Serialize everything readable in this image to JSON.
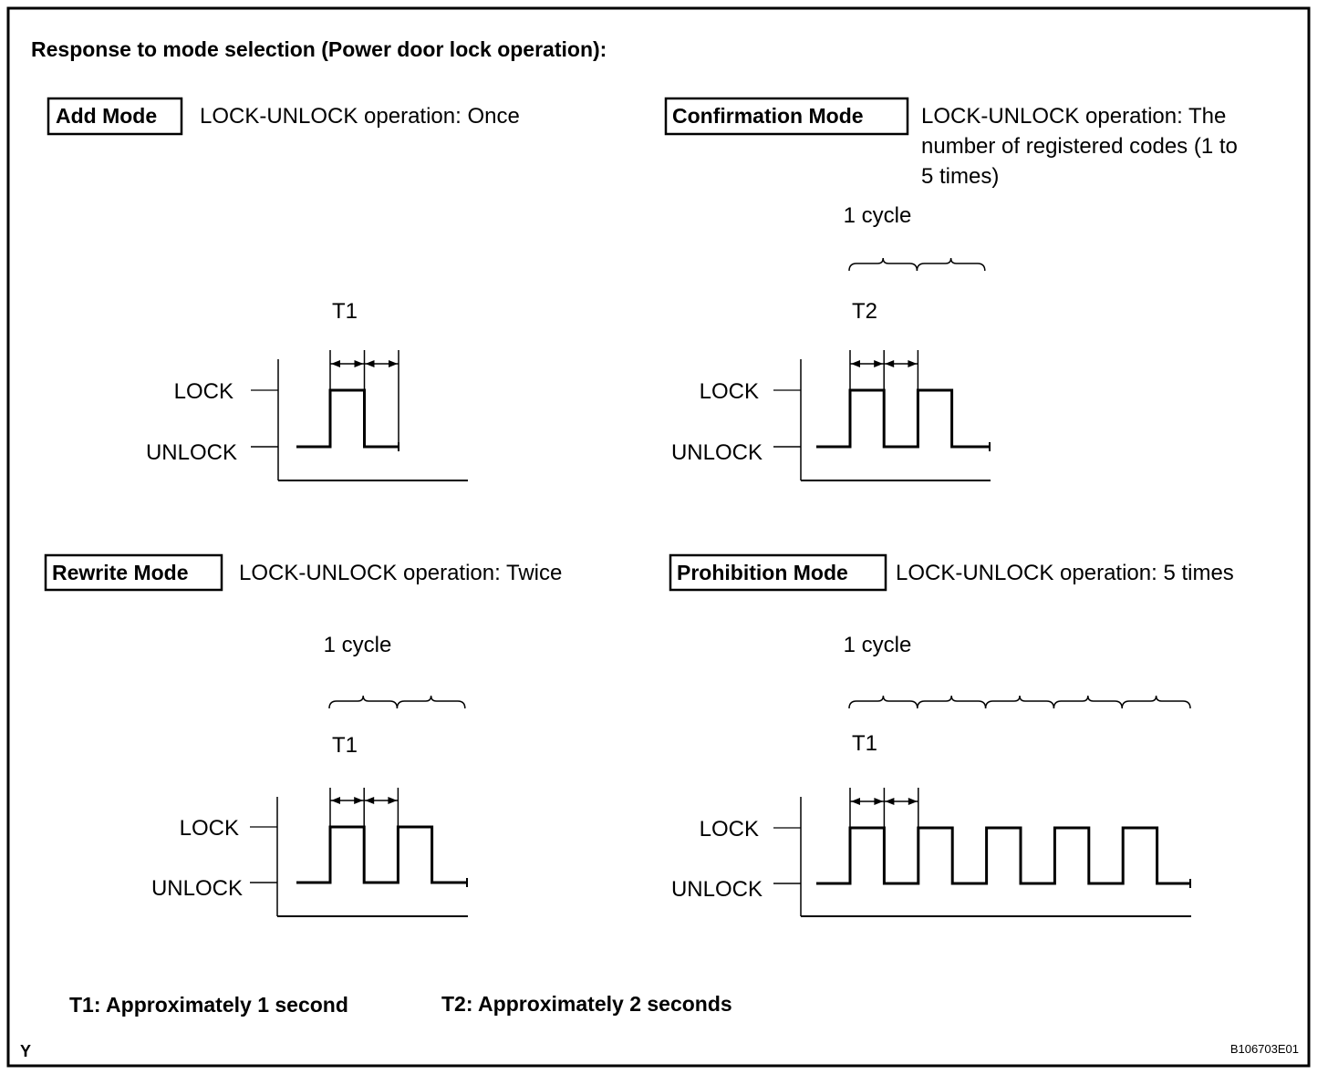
{
  "title": "Response to mode selection (Power door lock operation):",
  "level_labels": {
    "lock": "LOCK",
    "unlock": "UNLOCK"
  },
  "panels": [
    {
      "mode": "Add Mode",
      "description": [
        "LOCK-UNLOCK operation: Once"
      ],
      "timing_label": "T1",
      "cycle_label": "",
      "pulses": 1,
      "cycles": 0
    },
    {
      "mode": "Confirmation Mode",
      "description": [
        "LOCK-UNLOCK operation: The",
        "number of registered codes (1 to",
        "5 times)"
      ],
      "timing_label": "T2",
      "cycle_label": "1 cycle",
      "pulses": 2,
      "cycles": 2
    },
    {
      "mode": "Rewrite Mode",
      "description": [
        "LOCK-UNLOCK operation: Twice"
      ],
      "timing_label": "T1",
      "cycle_label": "1 cycle",
      "pulses": 2,
      "cycles": 2
    },
    {
      "mode": "Prohibition Mode",
      "description": [
        "LOCK-UNLOCK operation: 5 times"
      ],
      "timing_label": "T1",
      "cycle_label": "1 cycle",
      "pulses": 5,
      "cycles": 5
    }
  ],
  "legend": {
    "t1": "T1: Approximately 1 second",
    "t2": "T2: Approximately 2 seconds"
  },
  "corner_mark": "Y",
  "figure_id": "B106703E01"
}
